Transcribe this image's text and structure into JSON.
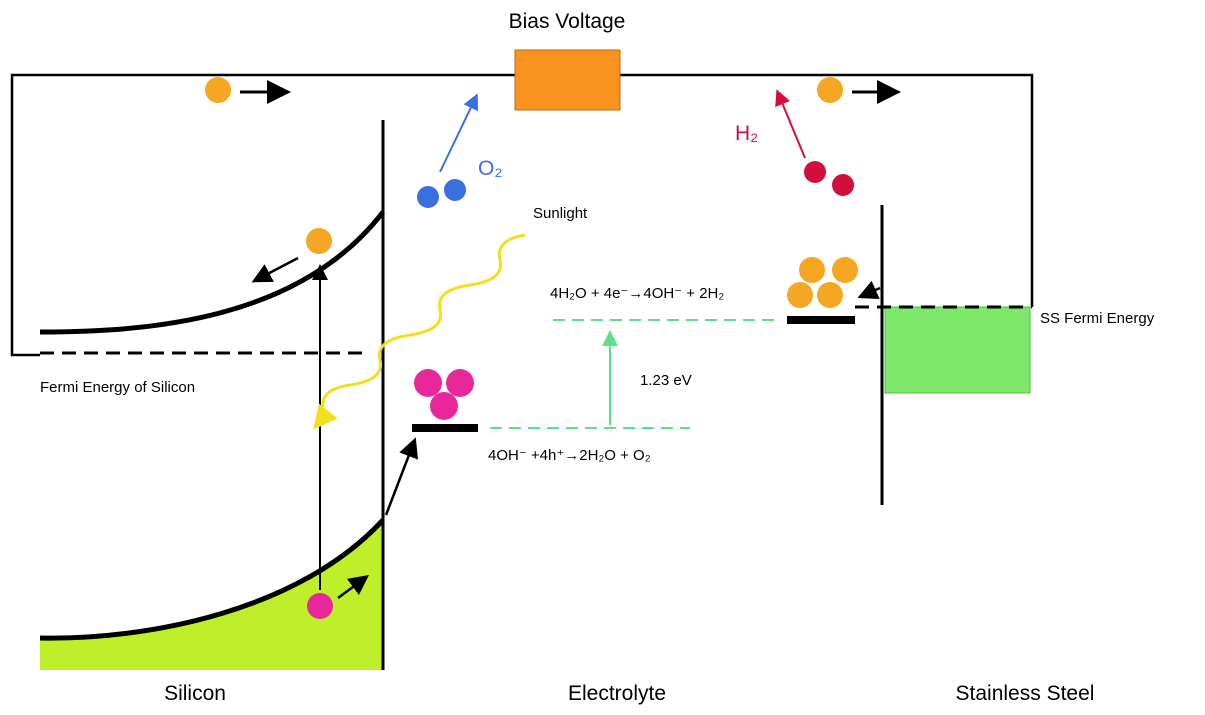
{
  "bias_voltage": "Bias Voltage",
  "species": {
    "oxygen": "O₂",
    "hydrogen": "H₂"
  },
  "sunlight": "Sunlight",
  "reactions": {
    "reduction": "4H₂O + 4e⁻→4OH⁻ + 2H₂",
    "oxidation": "4OH⁻ +4h⁺→2H₂O + O₂"
  },
  "energy": {
    "gap": "1.23 eV",
    "ss_fermi": "SS Fermi Energy",
    "si_fermi": "Fermi Energy of Silicon"
  },
  "regions": [
    "Silicon",
    "Electrolyte",
    "Stainless Steel"
  ]
}
